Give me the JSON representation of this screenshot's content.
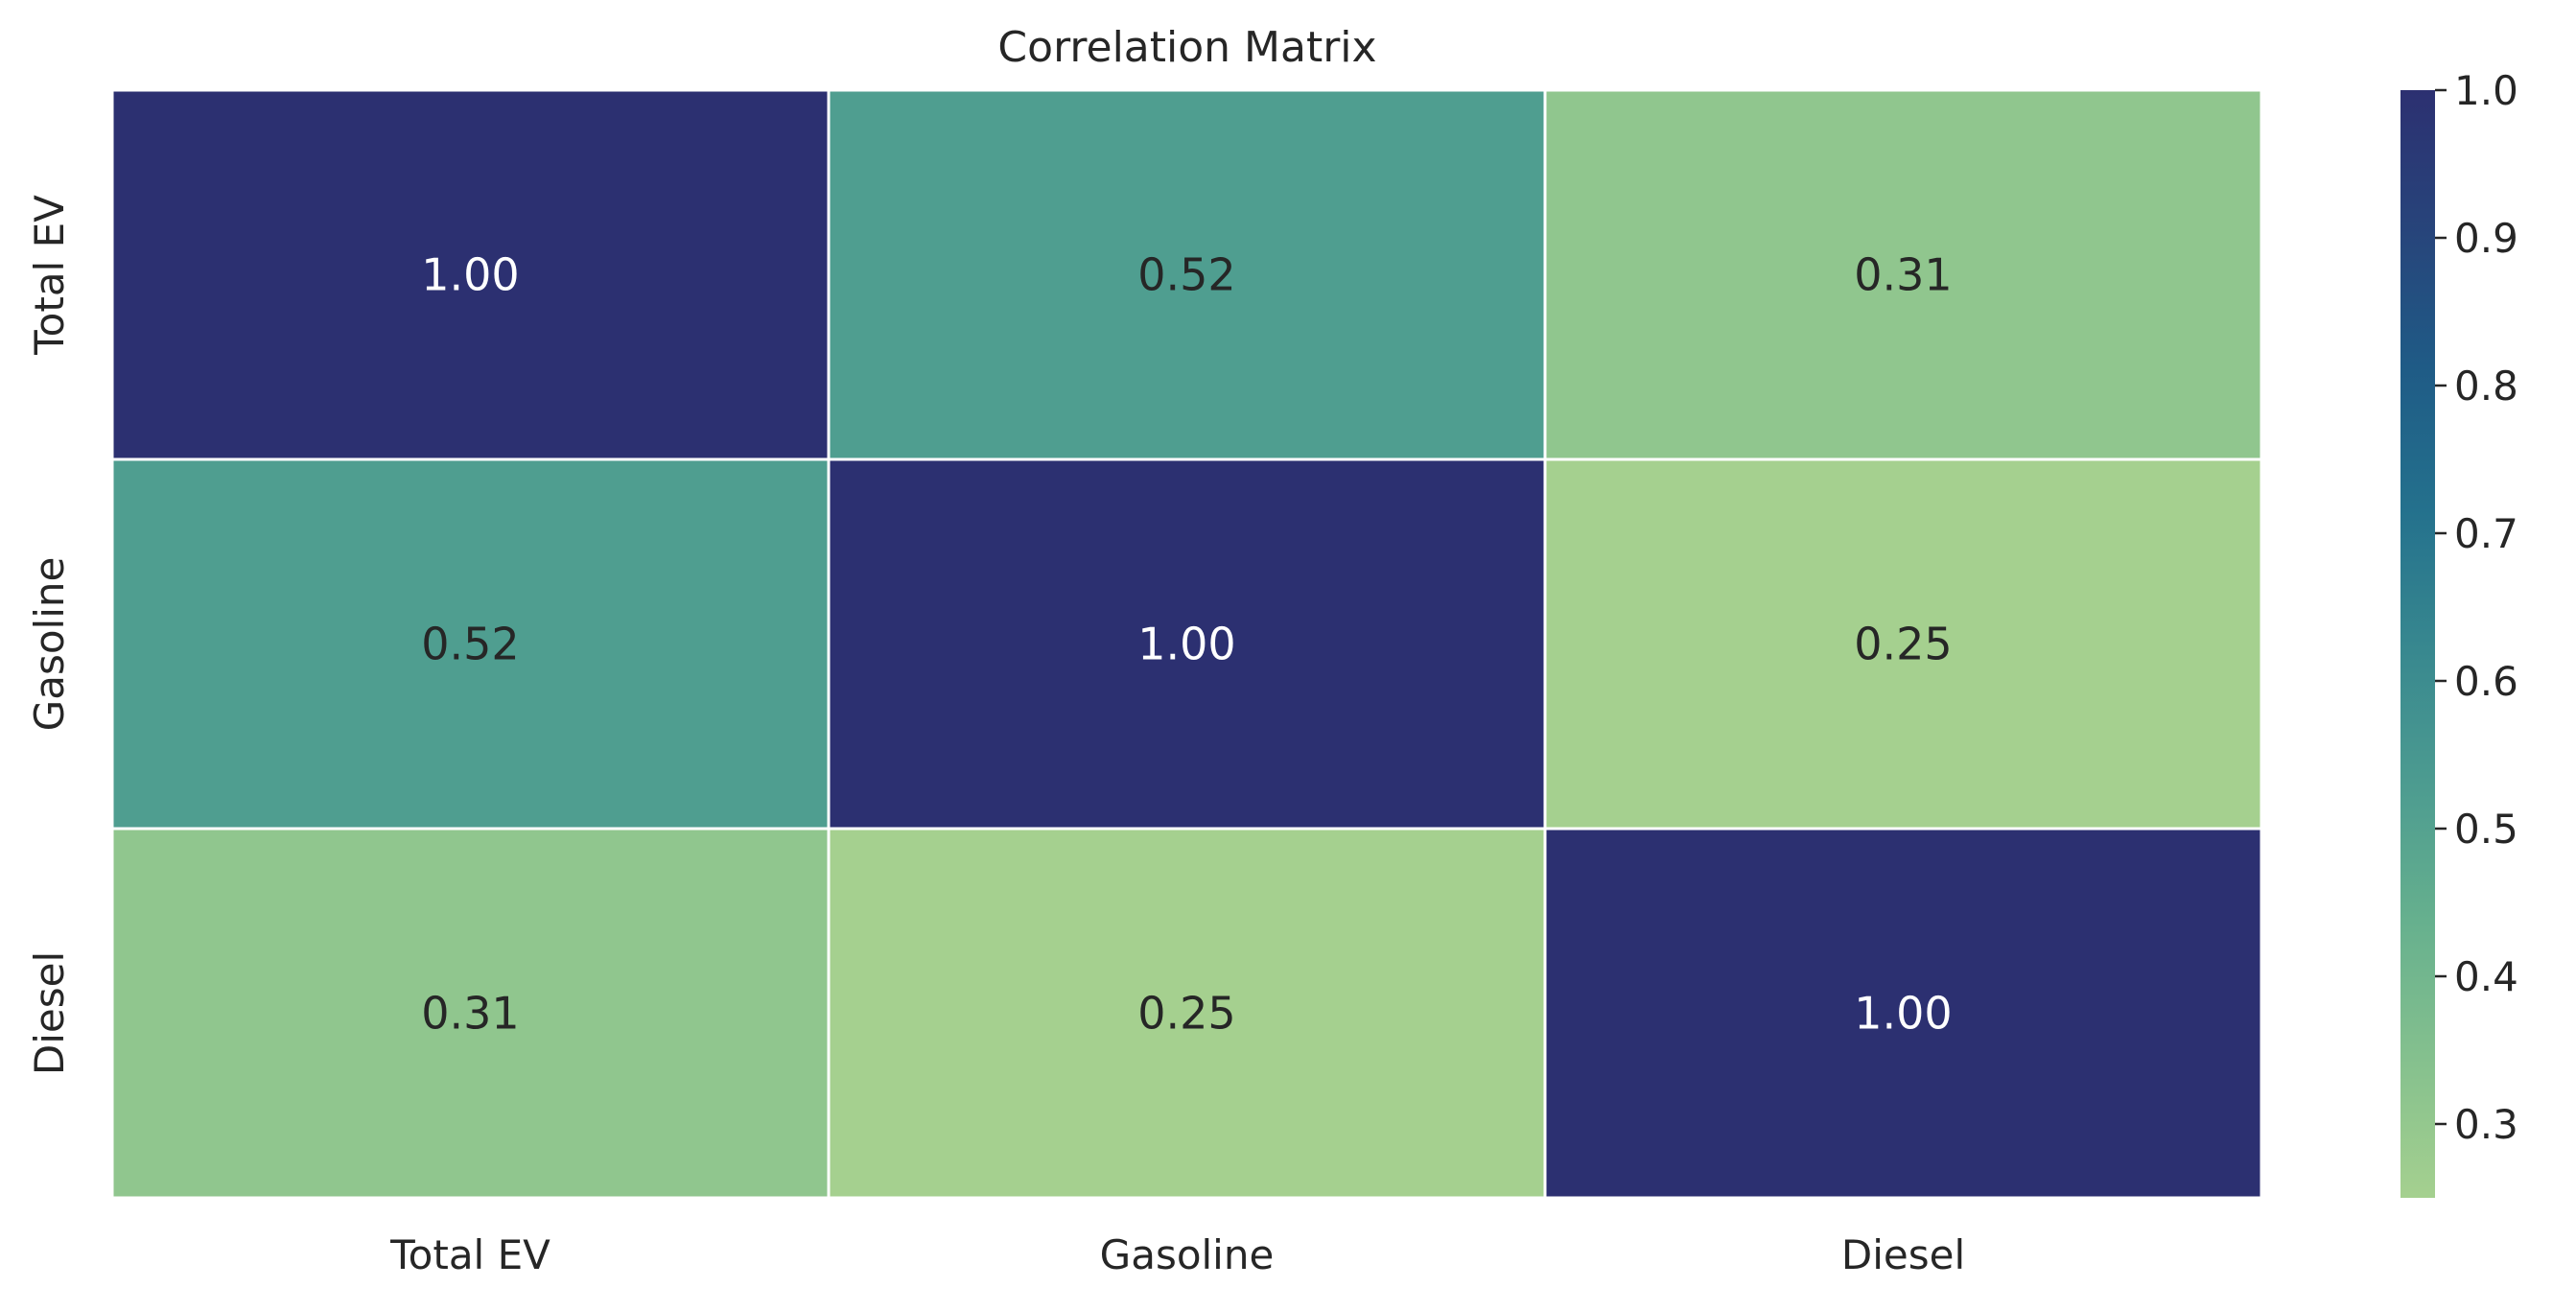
{
  "chart_data": {
    "type": "heatmap",
    "title": "Correlation Matrix",
    "x_labels": [
      "Total EV",
      "Gasoline",
      "Diesel"
    ],
    "y_labels": [
      "Total EV",
      "Gasoline",
      "Diesel"
    ],
    "values": [
      [
        1.0,
        0.52,
        0.31
      ],
      [
        0.52,
        1.0,
        0.25
      ],
      [
        0.31,
        0.25,
        1.0
      ]
    ],
    "value_format": "2-decimal",
    "colormap": "crest",
    "colorbar": {
      "min": 0.25,
      "max": 1.0,
      "ticks": [
        "0.3",
        "0.4",
        "0.5",
        "0.6",
        "0.7",
        "0.8",
        "0.9",
        "1.0"
      ]
    },
    "grid_lines": true,
    "colors": {
      "low": "#a5d08f",
      "mid": "#4d9c90",
      "high": "#2c3071",
      "text_dark": "#262626",
      "text_light": "#ffffff",
      "cell_border": "#ffffff"
    }
  }
}
